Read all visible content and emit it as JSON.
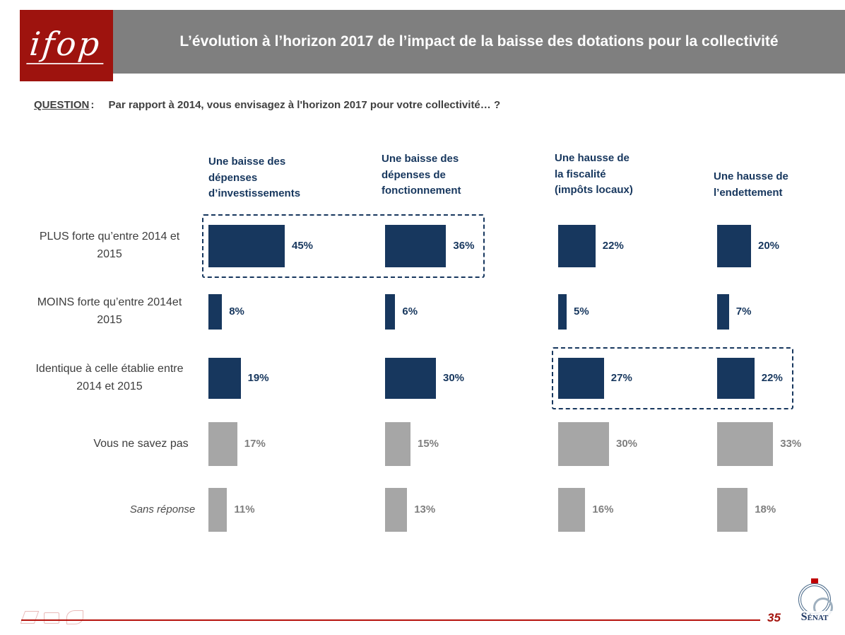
{
  "header": {
    "logo_text": "ifop",
    "title": "L’évolution à l’horizon 2017 de l’impact de la baisse des dotations pour la collectivité"
  },
  "question": {
    "label": "QUESTION",
    "colon": ":",
    "text": "Par rapport à 2014, vous envisagez à l'horizon 2017 pour votre collectivité… ?"
  },
  "chart_data": {
    "type": "bar",
    "orientation": "horizontal",
    "unit": "%",
    "value_range": [
      0,
      50
    ],
    "columns": [
      "Une baisse des dépenses d’investissements",
      "Une baisse des dépenses de fonctionnement",
      "Une hausse de la fiscalité (impôts locaux)",
      "Une hausse de l’endettement"
    ],
    "rows": [
      {
        "label": "PLUS forte qu’entre 2014 et 2015",
        "values": [
          45,
          36,
          22,
          20
        ],
        "bar_color": "#17375e",
        "text_color": "#17375e",
        "italic": false
      },
      {
        "label": "MOINS forte qu’entre 2014et 2015",
        "values": [
          8,
          6,
          5,
          7
        ],
        "bar_color": "#17375e",
        "text_color": "#17375e",
        "italic": false
      },
      {
        "label": "Identique à celle établie entre 2014 et 2015",
        "values": [
          19,
          30,
          27,
          22
        ],
        "bar_color": "#17375e",
        "text_color": "#17375e",
        "italic": false
      },
      {
        "label": "Vous ne savez pas",
        "values": [
          17,
          15,
          30,
          33
        ],
        "bar_color": "#a6a6a6",
        "text_color": "#7f7f7f",
        "italic": false
      },
      {
        "label": "Sans réponse",
        "values": [
          11,
          13,
          16,
          18
        ],
        "bar_color": "#a6a6a6",
        "text_color": "#7f7f7f",
        "italic": true
      }
    ],
    "highlights": [
      {
        "row": 0,
        "columns": [
          0,
          1
        ],
        "note": "dash-dot box around 45% and 36%"
      },
      {
        "row": 2,
        "columns": [
          2,
          3
        ],
        "note": "dash-dot box around 27% and 22%"
      }
    ],
    "colors": {
      "navy": "#17375e",
      "gray_bar": "#a6a6a6",
      "gray_text": "#7f7f7f",
      "banner_gray": "#7f7f7f",
      "ifop_red": "#9e130e",
      "footer_red": "#b6120c"
    },
    "title": "L’évolution à l’horizon 2017 de l’impact de la baisse des dotations pour la collectivité",
    "legend": "none",
    "grid": false
  },
  "footer": {
    "page_number": "35",
    "senat_logo_text": "Sénat"
  }
}
